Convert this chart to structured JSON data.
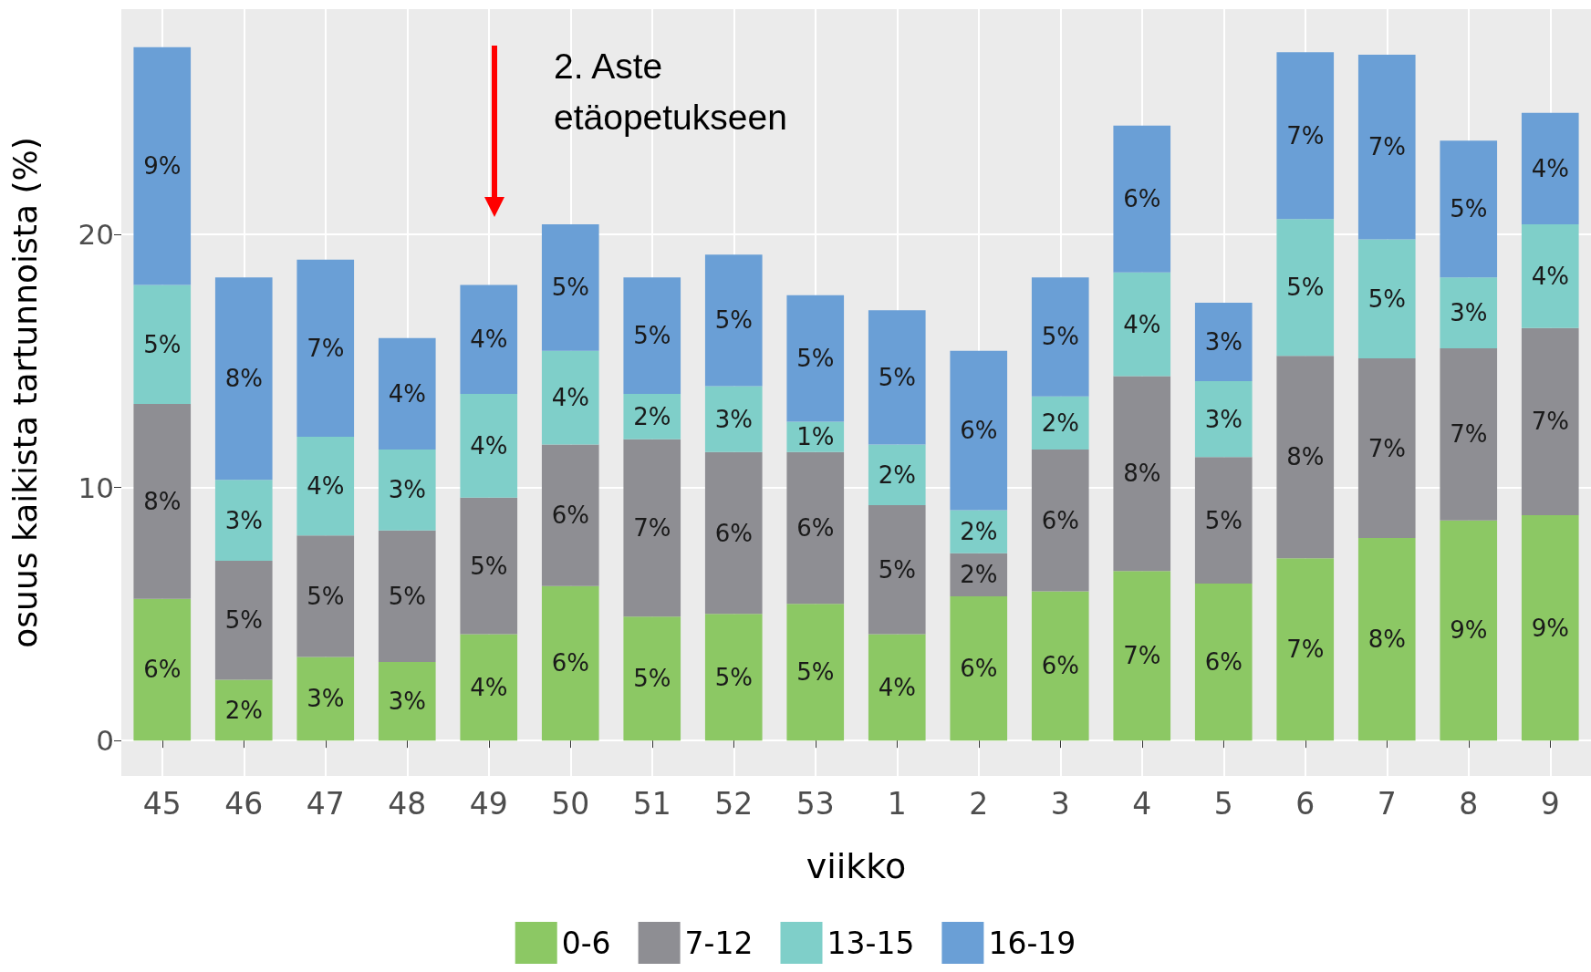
{
  "chart_data": {
    "type": "bar",
    "stacked": true,
    "xlabel": "viikko",
    "ylabel": "osuus kaikista tartunnoista (%)",
    "categories": [
      "45",
      "46",
      "47",
      "48",
      "49",
      "50",
      "51",
      "52",
      "53",
      "1",
      "2",
      "3",
      "4",
      "5",
      "6",
      "7",
      "8",
      "9"
    ],
    "series": [
      {
        "name": "0-6",
        "color": "#8cc864",
        "values": [
          5.6,
          2.4,
          3.3,
          3.1,
          4.2,
          6.1,
          4.9,
          5.0,
          5.4,
          4.2,
          5.7,
          5.9,
          6.7,
          6.2,
          7.2,
          8.0,
          8.7,
          8.9
        ],
        "value_labels": [
          "6%",
          "2%",
          "3%",
          "3%",
          "4%",
          "6%",
          "5%",
          "5%",
          "5%",
          "4%",
          "6%",
          "6%",
          "7%",
          "6%",
          "7%",
          "8%",
          "9%",
          "9%"
        ]
      },
      {
        "name": "7-12",
        "color": "#8e8e93",
        "values": [
          7.7,
          4.7,
          4.8,
          5.2,
          5.4,
          5.6,
          7.0,
          6.4,
          6.0,
          5.1,
          1.7,
          5.6,
          7.7,
          5.0,
          8.0,
          7.1,
          6.8,
          7.4
        ],
        "value_labels": [
          "8%",
          "5%",
          "5%",
          "5%",
          "5%",
          "6%",
          "7%",
          "6%",
          "6%",
          "5%",
          "2%",
          "6%",
          "8%",
          "5%",
          "8%",
          "7%",
          "7%",
          "7%"
        ]
      },
      {
        "name": "13-15",
        "color": "#7fcfc9",
        "values": [
          4.7,
          3.2,
          3.9,
          3.2,
          4.1,
          3.7,
          1.8,
          2.6,
          1.2,
          2.4,
          1.7,
          2.1,
          4.1,
          3.0,
          5.4,
          4.7,
          2.8,
          4.1
        ],
        "value_labels": [
          "5%",
          "3%",
          "4%",
          "3%",
          "4%",
          "4%",
          "2%",
          "3%",
          "1%",
          "2%",
          "2%",
          "2%",
          "4%",
          "3%",
          "5%",
          "5%",
          "3%",
          "4%"
        ]
      },
      {
        "name": "16-19",
        "color": "#6a9fd6",
        "values": [
          9.4,
          8.0,
          7.0,
          4.4,
          4.3,
          5.0,
          4.6,
          5.2,
          5.0,
          5.3,
          6.3,
          4.7,
          5.8,
          3.1,
          6.6,
          7.3,
          5.4,
          4.4
        ],
        "value_labels": [
          "9%",
          "8%",
          "7%",
          "4%",
          "4%",
          "5%",
          "5%",
          "5%",
          "5%",
          "5%",
          "6%",
          "5%",
          "6%",
          "3%",
          "7%",
          "7%",
          "5%",
          "4%"
        ]
      }
    ],
    "ylim": [
      -1.4,
      28.9
    ],
    "yticks": [
      0,
      10,
      20
    ],
    "grid": true,
    "legend": "bottom",
    "annotations": [
      "2. Aste\netäopetukseen"
    ]
  }
}
